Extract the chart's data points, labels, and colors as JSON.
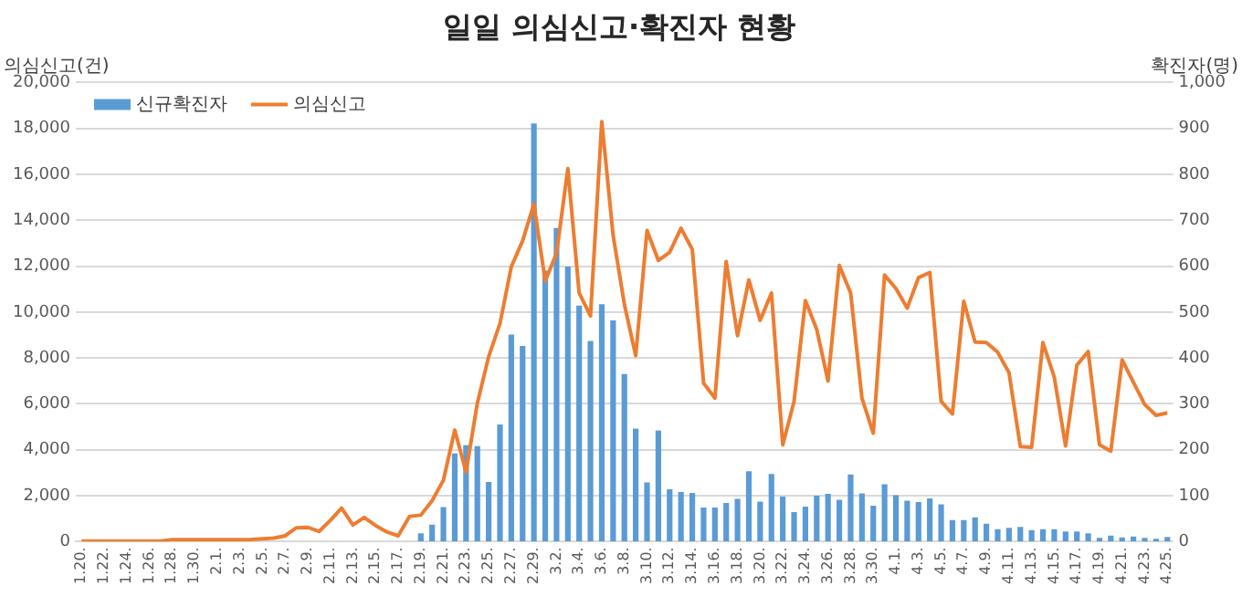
{
  "chart_data": {
    "type": "bar",
    "title": "일일 의심신고·확진자 현황",
    "ylabel": "의심신고(건)",
    "y2label": "확진자(명)",
    "categories": [
      "1.20.",
      null,
      "1.22.",
      null,
      "1.24.",
      null,
      "1.26.",
      null,
      "1.28.",
      null,
      "1.30.",
      null,
      "2.1.",
      null,
      "2.3.",
      null,
      "2.5.",
      null,
      "2.7.",
      null,
      "2.9.",
      null,
      "2.11.",
      null,
      "2.13.",
      null,
      "2.15.",
      null,
      "2.17.",
      null,
      "2.19.",
      null,
      "2.21.",
      null,
      "2.23.",
      null,
      "2.25.",
      null,
      "2.27.",
      null,
      "2.29.",
      null,
      "3.2.",
      null,
      "3.4.",
      null,
      "3.6.",
      null,
      "3.8.",
      null,
      "3.10.",
      null,
      "3.12.",
      null,
      "3.14.",
      null,
      "3.16.",
      null,
      "3.18.",
      null,
      "3.20.",
      null,
      "3.22.",
      null,
      "3.24.",
      null,
      "3.26.",
      null,
      "3.28.",
      null,
      "3.30.",
      null,
      "4.1.",
      null,
      "4.3.",
      null,
      "4.5.",
      null,
      "4.7.",
      null,
      "4.9.",
      null,
      "4.11.",
      null,
      "4.13.",
      null,
      "4.15.",
      null,
      "4.17.",
      null,
      "4.19.",
      null,
      "4.21.",
      null,
      "4.23.",
      null,
      "4.25."
    ],
    "series": [
      {
        "name": "신규확진자",
        "axis": "y2",
        "color": "#5b9bd5",
        "values": [
          0,
          0,
          0,
          0,
          0,
          0,
          0,
          0,
          0,
          0,
          0,
          0,
          0,
          0,
          0,
          0,
          0,
          0,
          0,
          0,
          0,
          0,
          0,
          0,
          0,
          0,
          0,
          0,
          0,
          0,
          18,
          37,
          75,
          192,
          210,
          208,
          130,
          255,
          451,
          426,
          911,
          590,
          683,
          599,
          514,
          437,
          517,
          482,
          365,
          246,
          129,
          242,
          114,
          108,
          106,
          74,
          74,
          84,
          93,
          153,
          87,
          147,
          98,
          64,
          76,
          100,
          104,
          91,
          146,
          105,
          78,
          125,
          101,
          89,
          86,
          94,
          81,
          47,
          47,
          53,
          39,
          27,
          30,
          32,
          25,
          27,
          27,
          22,
          22,
          18,
          8,
          13,
          9,
          11,
          8,
          6,
          10
        ]
      },
      {
        "name": "의심신고",
        "type": "line",
        "color": "#ed7d31",
        "values": [
          20,
          20,
          20,
          20,
          20,
          20,
          20,
          20,
          80,
          80,
          80,
          80,
          80,
          80,
          80,
          90,
          120,
          150,
          250,
          600,
          620,
          440,
          920,
          1460,
          720,
          1050,
          700,
          420,
          250,
          1100,
          1150,
          1780,
          2670,
          4860,
          3030,
          6030,
          8060,
          9500,
          11970,
          13100,
          14700,
          11360,
          12560,
          16250,
          10830,
          9830,
          18300,
          13350,
          10330,
          8100,
          13550,
          12250,
          12600,
          13650,
          12730,
          6900,
          6250,
          12200,
          8970,
          11400,
          9640,
          10830,
          4220,
          6110,
          10500,
          9250,
          7000,
          12030,
          10830,
          6250,
          4720,
          11610,
          11030,
          10170,
          11500,
          11720,
          6110,
          5560,
          10470,
          8690,
          8670,
          8250,
          7360,
          4140,
          4110,
          8670,
          7170,
          4170,
          7690,
          8280,
          4220,
          3940,
          7920,
          6940,
          5970,
          5500,
          5610
        ]
      }
    ],
    "ylim": [
      0,
      20000
    ],
    "yticks": [
      0,
      {
        "value": 2000,
        "label": "2,000"
      },
      {
        "value": 4000,
        "label": "4,000"
      },
      {
        "value": 6000,
        "label": "6,000"
      },
      {
        "value": 8000,
        "label": "8,000"
      },
      {
        "value": 10000,
        "label": "10,000"
      },
      {
        "value": 12000,
        "label": "12,000"
      },
      {
        "value": 14000,
        "label": "14,000"
      },
      {
        "value": 16000,
        "label": "16,000"
      },
      {
        "value": 18000,
        "label": "18,000"
      },
      {
        "value": 20000,
        "label": "20,000"
      }
    ],
    "y2lim": [
      0,
      1000
    ],
    "y2ticks": [
      0,
      100,
      200,
      300,
      400,
      500,
      600,
      700,
      800,
      900,
      {
        "value": 1000,
        "label": "1,000"
      }
    ],
    "grid": "y",
    "legend": "top left",
    "marker": "none"
  }
}
